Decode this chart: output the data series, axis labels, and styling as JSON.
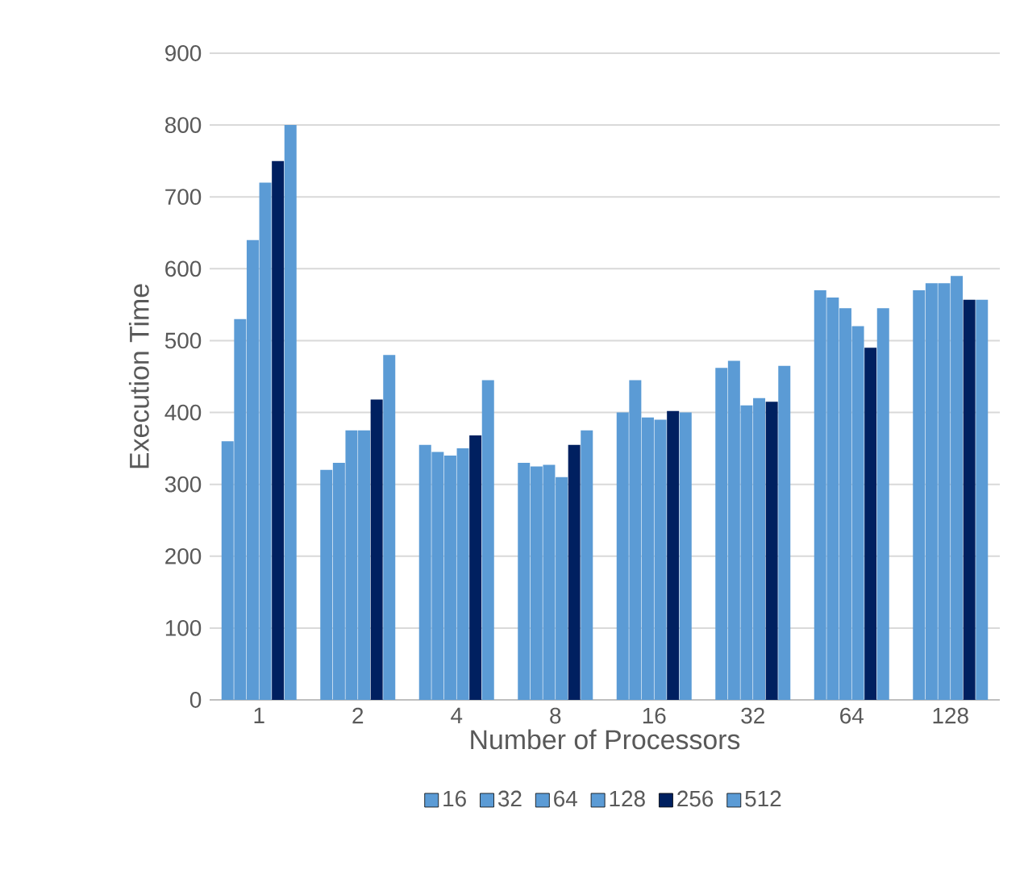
{
  "chart_data": {
    "type": "bar",
    "xlabel": "Number of Processors",
    "ylabel": "Execution Time",
    "categories": [
      "1",
      "2",
      "4",
      "8",
      "16",
      "32",
      "64",
      "128"
    ],
    "series": [
      {
        "name": "16",
        "color": "#5b9bd5",
        "values": [
          360,
          320,
          355,
          330,
          400,
          462,
          570,
          570
        ]
      },
      {
        "name": "32",
        "color": "#5b9bd5",
        "values": [
          530,
          330,
          345,
          325,
          445,
          472,
          560,
          580
        ]
      },
      {
        "name": "64",
        "color": "#5b9bd5",
        "values": [
          640,
          375,
          340,
          327,
          393,
          410,
          545,
          580
        ]
      },
      {
        "name": "128",
        "color": "#5b9bd5",
        "values": [
          720,
          375,
          350,
          310,
          390,
          420,
          520,
          590
        ]
      },
      {
        "name": "256",
        "color": "#002060",
        "values": [
          750,
          418,
          368,
          355,
          402,
          415,
          490,
          557
        ]
      },
      {
        "name": "512",
        "color": "#5b9bd5",
        "values": [
          800,
          480,
          445,
          375,
          400,
          465,
          545,
          557
        ]
      }
    ],
    "ylim": [
      0,
      900
    ],
    "yticks": [
      0,
      100,
      200,
      300,
      400,
      500,
      600,
      700,
      800,
      900
    ],
    "grid": "y",
    "legend": "bottom"
  }
}
